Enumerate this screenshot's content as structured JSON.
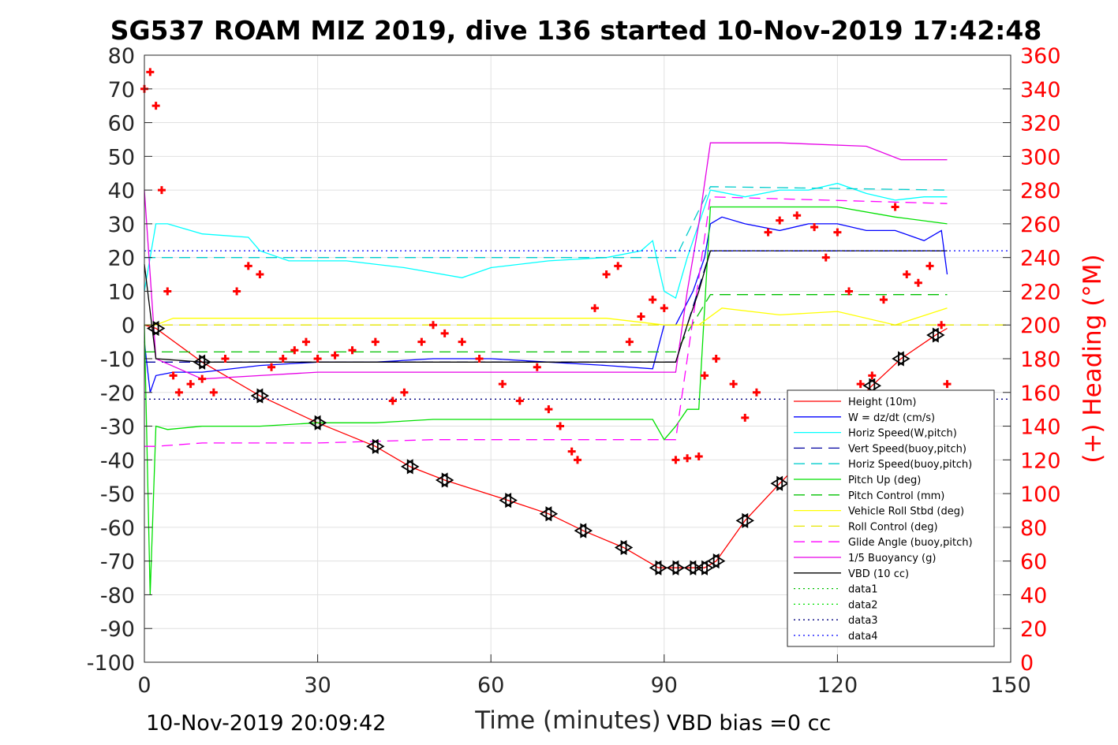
{
  "chart_data": {
    "type": "line",
    "title": "SG537 ROAM MIZ 2019, dive 136 started 10-Nov-2019 17:42:48",
    "xlabel": "Time (minutes)",
    "ylabel": "",
    "y2label": "(+) Heading (°M)",
    "xlim": [
      0,
      150
    ],
    "ylim": [
      -100,
      80
    ],
    "y2lim": [
      0,
      360
    ],
    "xticks": [
      "0",
      "30",
      "60",
      "90",
      "120",
      "150"
    ],
    "yticks": [
      "80",
      "70",
      "60",
      "50",
      "40",
      "30",
      "20",
      "10",
      "0",
      "-10",
      "-20",
      "-30",
      "-40",
      "-50",
      "-60",
      "-70",
      "-80",
      "-90",
      "-100"
    ],
    "y2ticks": [
      "360",
      "340",
      "320",
      "300",
      "280",
      "260",
      "240",
      "220",
      "200",
      "180",
      "160",
      "140",
      "120",
      "100",
      "80",
      "60",
      "40",
      "20",
      "0"
    ],
    "grid": true,
    "legend_position": "bottom-right",
    "series": [
      {
        "name": "Height (10m)",
        "color": "#ff0000",
        "style": "solid",
        "x": [
          0,
          2,
          10,
          20,
          30,
          40,
          46,
          52,
          63,
          70,
          76,
          83,
          89,
          92,
          95,
          97,
          99,
          104,
          110,
          114,
          120,
          126,
          131,
          137,
          139
        ],
        "y": [
          0,
          -1,
          -11,
          -21,
          -29,
          -36,
          -42,
          -46,
          -52,
          -56,
          -61,
          -66,
          -72,
          -72,
          -72,
          -72,
          -70,
          -58,
          -47,
          -40,
          -28,
          -18,
          -10,
          -3,
          -1
        ]
      },
      {
        "name": "W = dz/dt (cm/s)",
        "color": "#0000ff",
        "style": "solid",
        "x": [
          0,
          1,
          2,
          5,
          10,
          20,
          30,
          40,
          50,
          60,
          70,
          80,
          88,
          90,
          92,
          95,
          97,
          98,
          100,
          104,
          110,
          115,
          120,
          125,
          130,
          135,
          138,
          139
        ],
        "y": [
          -5,
          -20,
          -15,
          -14,
          -14,
          -12,
          -11,
          -11,
          -10,
          -10,
          -11,
          -12,
          -13,
          0,
          0,
          10,
          20,
          30,
          32,
          30,
          28,
          30,
          30,
          28,
          28,
          25,
          28,
          15
        ]
      },
      {
        "name": "Horiz Speed(W,pitch)",
        "color": "#00ffff",
        "style": "solid",
        "x": [
          0,
          2,
          4,
          10,
          18,
          20,
          25,
          35,
          45,
          55,
          60,
          70,
          80,
          86,
          88,
          90,
          92,
          94,
          96,
          98,
          104,
          110,
          115,
          120,
          125,
          130,
          135,
          139
        ],
        "y": [
          10,
          30,
          30,
          27,
          26,
          22,
          19,
          19,
          17,
          14,
          17,
          19,
          20,
          22,
          25,
          10,
          8,
          20,
          30,
          40,
          38,
          40,
          40,
          42,
          39,
          37,
          38,
          38
        ]
      },
      {
        "name": "Vert Speed(buoy,pitch)",
        "color": "#0000a0",
        "style": "dashed",
        "x": [
          0,
          2,
          90,
          92,
          98,
          139
        ],
        "y": [
          -11,
          -11,
          -11,
          -11,
          22,
          22
        ]
      },
      {
        "name": "Horiz Speed(buoy,pitch)",
        "color": "#00cccc",
        "style": "dashed",
        "x": [
          0,
          2,
          20,
          30,
          50,
          60,
          80,
          90,
          92,
          98,
          139
        ],
        "y": [
          20,
          20,
          20,
          20,
          20,
          20,
          20,
          20,
          20,
          41,
          40
        ]
      },
      {
        "name": "Pitch Up (deg)",
        "color": "#00e000",
        "style": "solid",
        "x": [
          0,
          1,
          2,
          4,
          10,
          20,
          30,
          40,
          50,
          60,
          70,
          80,
          88,
          90,
          92,
          94,
          96,
          98,
          104,
          110,
          120,
          130,
          139
        ],
        "y": [
          0,
          -80,
          -30,
          -31,
          -30,
          -30,
          -29,
          -29,
          -28,
          -28,
          -28,
          -28,
          -28,
          -34,
          -30,
          -25,
          -25,
          35,
          35,
          35,
          35,
          32,
          30
        ]
      },
      {
        "name": "Pitch Control (mm)",
        "color": "#00c000",
        "style": "dashed",
        "x": [
          0,
          92,
          98,
          139
        ],
        "y": [
          -8,
          -8,
          9,
          9
        ]
      },
      {
        "name": "Vehicle Roll Stbd (deg)",
        "color": "#ffff00",
        "style": "solid",
        "x": [
          0,
          2,
          5,
          10,
          20,
          30,
          40,
          50,
          60,
          70,
          80,
          90,
          92,
          96,
          100,
          110,
          120,
          130,
          139
        ],
        "y": [
          0,
          0,
          2,
          2,
          2,
          2,
          2,
          2,
          2,
          2,
          2,
          0,
          0,
          0,
          5,
          3,
          4,
          0,
          5
        ]
      },
      {
        "name": "Roll Control (deg)",
        "color": "#e6e600",
        "style": "dashed",
        "x": [
          0,
          150
        ],
        "y": [
          0,
          0
        ]
      },
      {
        "name": "Glide Angle (buoy,pitch)",
        "color": "#ff00ff",
        "style": "dashed",
        "x": [
          0,
          2,
          10,
          30,
          50,
          70,
          90,
          92,
          98,
          139
        ],
        "y": [
          -36,
          -36,
          -35,
          -35,
          -34,
          -34,
          -34,
          -34,
          38,
          36
        ]
      },
      {
        "name": "1/5 Buoyancy (g)",
        "color": "#e600e6",
        "style": "solid",
        "x": [
          0,
          2,
          10,
          20,
          30,
          40,
          60,
          80,
          92,
          94,
          96,
          98,
          110,
          125,
          131,
          139
        ],
        "y": [
          40,
          -10,
          -16,
          -15,
          -14,
          -14,
          -14,
          -14,
          -14,
          10,
          30,
          54,
          54,
          53,
          49,
          49
        ]
      },
      {
        "name": "VBD (10 cc)",
        "color": "#000000",
        "style": "solid",
        "x": [
          0,
          2,
          10,
          90,
          92,
          94,
          96,
          98,
          139
        ],
        "y": [
          18,
          -10,
          -11,
          -11,
          -11,
          0,
          10,
          22,
          22
        ]
      },
      {
        "name": "data1",
        "color": "#00c000",
        "style": "dotted",
        "x": [],
        "y": []
      },
      {
        "name": "data2",
        "color": "#00e000",
        "style": "dotted",
        "x": [],
        "y": []
      },
      {
        "name": "data3",
        "color": "#000080",
        "style": "dotted",
        "x": [
          0,
          150
        ],
        "y": [
          -22,
          -22
        ]
      },
      {
        "name": "data4",
        "color": "#0000ff",
        "style": "dotted",
        "x": [
          0,
          150
        ],
        "y": [
          22,
          22
        ]
      },
      {
        "name": "Heading",
        "axis": "right",
        "color": "#ff0000",
        "style": "marker",
        "x": [
          0,
          1,
          2,
          3,
          4,
          5,
          6,
          8,
          10,
          12,
          14,
          16,
          18,
          20,
          22,
          24,
          26,
          28,
          30,
          33,
          36,
          40,
          43,
          45,
          48,
          50,
          52,
          55,
          58,
          62,
          65,
          68,
          70,
          72,
          74,
          75,
          78,
          80,
          82,
          84,
          86,
          88,
          90,
          92,
          94,
          96,
          97,
          99,
          102,
          104,
          106,
          108,
          110,
          113,
          116,
          118,
          120,
          122,
          124,
          126,
          128,
          130,
          132,
          134,
          136,
          138,
          139
        ],
        "y": [
          340,
          350,
          330,
          280,
          220,
          170,
          160,
          165,
          168,
          160,
          180,
          220,
          235,
          230,
          175,
          180,
          185,
          190,
          180,
          182,
          185,
          190,
          155,
          160,
          190,
          200,
          195,
          190,
          180,
          165,
          155,
          175,
          150,
          140,
          125,
          120,
          210,
          230,
          235,
          190,
          205,
          215,
          210,
          120,
          121,
          122,
          170,
          180,
          165,
          145,
          160,
          255,
          262,
          265,
          258,
          240,
          255,
          220,
          165,
          170,
          215,
          270,
          230,
          225,
          235,
          200,
          165
        ]
      }
    ]
  },
  "footer": {
    "left_text": "10-Nov-2019 20:09:42",
    "right_text": "VBD bias =0 cc"
  }
}
